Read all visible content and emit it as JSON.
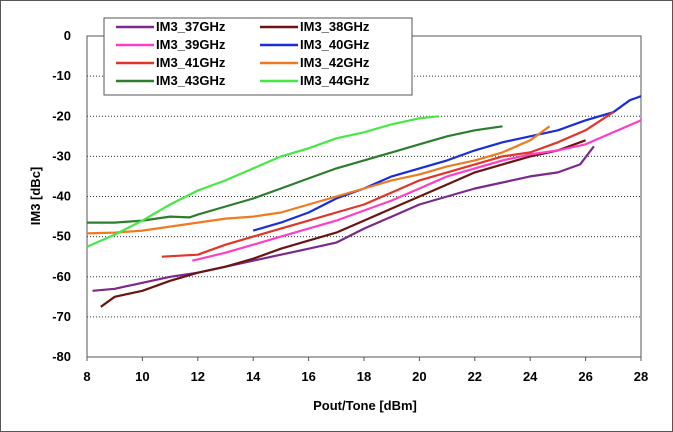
{
  "chart_data": {
    "type": "line",
    "xlabel": "Pout/Tone [dBm]",
    "ylabel": "IM3 [dBc]",
    "xlim": [
      8,
      28
    ],
    "ylim": [
      -80,
      0
    ],
    "x_ticks": [
      "8",
      "10",
      "12",
      "14",
      "16",
      "18",
      "20",
      "22",
      "24",
      "26",
      "28"
    ],
    "y_ticks": [
      "0",
      "-10",
      "-20",
      "-30",
      "-40",
      "-50",
      "-60",
      "-70",
      "-80"
    ],
    "grid": "horizontal dotted",
    "legend_position": "top-left, inside plot, 2 columns",
    "series": [
      {
        "name": "IM3_37GHz",
        "color": "#7a2a8c",
        "points": [
          [
            8.2,
            -63.5
          ],
          [
            9,
            -63
          ],
          [
            10,
            -61.5
          ],
          [
            11,
            -60
          ],
          [
            12,
            -59
          ],
          [
            13,
            -57.5
          ],
          [
            14,
            -56
          ],
          [
            15,
            -54.5
          ],
          [
            16,
            -53
          ],
          [
            17,
            -51.5
          ],
          [
            18,
            -48
          ],
          [
            19,
            -45
          ],
          [
            20,
            -42
          ],
          [
            21,
            -40
          ],
          [
            22,
            -38
          ],
          [
            23,
            -36.5
          ],
          [
            24,
            -35
          ],
          [
            25,
            -34
          ],
          [
            25.8,
            -32
          ],
          [
            26.3,
            -27.5
          ]
        ]
      },
      {
        "name": "IM3_38GHz",
        "color": "#6b1414",
        "points": [
          [
            8.5,
            -67.5
          ],
          [
            9,
            -65
          ],
          [
            10,
            -63.5
          ],
          [
            11,
            -61
          ],
          [
            12,
            -59
          ],
          [
            13,
            -57.5
          ],
          [
            14,
            -55.5
          ],
          [
            15,
            -53
          ],
          [
            16,
            -51
          ],
          [
            17,
            -49
          ],
          [
            18,
            -46
          ],
          [
            19,
            -43
          ],
          [
            20,
            -40
          ],
          [
            21,
            -37
          ],
          [
            22,
            -34
          ],
          [
            23,
            -32
          ],
          [
            24,
            -30
          ],
          [
            25,
            -28.5
          ],
          [
            26,
            -26
          ]
        ]
      },
      {
        "name": "IM3_39GHz",
        "color": "#ff3ec8",
        "points": [
          [
            11.8,
            -56
          ],
          [
            13,
            -54
          ],
          [
            14,
            -52
          ],
          [
            15,
            -50
          ],
          [
            16,
            -48
          ],
          [
            17,
            -46
          ],
          [
            18,
            -43.5
          ],
          [
            19,
            -41
          ],
          [
            20,
            -38
          ],
          [
            21,
            -35
          ],
          [
            22,
            -33
          ],
          [
            23,
            -31
          ],
          [
            24,
            -29.5
          ],
          [
            25,
            -28.5
          ],
          [
            26,
            -27
          ],
          [
            27,
            -24
          ],
          [
            28,
            -21
          ]
        ]
      },
      {
        "name": "IM3_40GHz",
        "color": "#1a2ed8",
        "points": [
          [
            14,
            -48.5
          ],
          [
            15,
            -46.5
          ],
          [
            16,
            -44
          ],
          [
            17,
            -40.5
          ],
          [
            18,
            -38
          ],
          [
            19,
            -35
          ],
          [
            20,
            -33
          ],
          [
            21,
            -31
          ],
          [
            22,
            -28.5
          ],
          [
            23,
            -26.5
          ],
          [
            24,
            -25
          ],
          [
            25,
            -23.5
          ],
          [
            26,
            -21
          ],
          [
            27,
            -19
          ],
          [
            27.3,
            -17.5
          ],
          [
            27.6,
            -16
          ],
          [
            28,
            -15
          ]
        ]
      },
      {
        "name": "IM3_41GHz",
        "color": "#e0352a",
        "points": [
          [
            10.7,
            -55
          ],
          [
            12,
            -54.5
          ],
          [
            13,
            -52
          ],
          [
            14,
            -50
          ],
          [
            15,
            -48
          ],
          [
            16,
            -46
          ],
          [
            17,
            -44
          ],
          [
            18,
            -42
          ],
          [
            19,
            -39
          ],
          [
            20,
            -36
          ],
          [
            21,
            -34
          ],
          [
            22,
            -32
          ],
          [
            23,
            -30
          ],
          [
            24,
            -29
          ],
          [
            25,
            -26.5
          ],
          [
            26,
            -23.5
          ],
          [
            27,
            -19
          ]
        ]
      },
      {
        "name": "IM3_42GHz",
        "color": "#f07a20",
        "points": [
          [
            8,
            -49.2
          ],
          [
            9,
            -49
          ],
          [
            10,
            -48.5
          ],
          [
            11,
            -47.5
          ],
          [
            12,
            -46.5
          ],
          [
            13,
            -45.5
          ],
          [
            14,
            -45
          ],
          [
            15,
            -44
          ],
          [
            16,
            -42
          ],
          [
            17,
            -40
          ],
          [
            18,
            -38
          ],
          [
            19,
            -36
          ],
          [
            20,
            -34.5
          ],
          [
            21,
            -32.5
          ],
          [
            22,
            -31
          ],
          [
            23,
            -29
          ],
          [
            24,
            -26
          ],
          [
            24.7,
            -22.5
          ]
        ]
      },
      {
        "name": "IM3_43GHz",
        "color": "#2e7d2e",
        "points": [
          [
            8,
            -46.5
          ],
          [
            9,
            -46.5
          ],
          [
            10,
            -46
          ],
          [
            11,
            -45
          ],
          [
            11.7,
            -45.2
          ],
          [
            12,
            -44.5
          ],
          [
            13,
            -42.5
          ],
          [
            14,
            -40.5
          ],
          [
            15,
            -38
          ],
          [
            16,
            -35.5
          ],
          [
            17,
            -33
          ],
          [
            18,
            -31
          ],
          [
            19,
            -29
          ],
          [
            20,
            -27
          ],
          [
            21,
            -25
          ],
          [
            22,
            -23.5
          ],
          [
            23,
            -22.5
          ]
        ]
      },
      {
        "name": "IM3_44GHz",
        "color": "#45e845",
        "points": [
          [
            8,
            -52.5
          ],
          [
            9,
            -49.5
          ],
          [
            10,
            -46
          ],
          [
            11,
            -42
          ],
          [
            12,
            -38.5
          ],
          [
            13,
            -36
          ],
          [
            14,
            -33
          ],
          [
            15,
            -30
          ],
          [
            16,
            -28
          ],
          [
            17,
            -25.5
          ],
          [
            18,
            -24
          ],
          [
            19,
            -22
          ],
          [
            20,
            -20.5
          ],
          [
            20.7,
            -20
          ]
        ]
      }
    ]
  }
}
